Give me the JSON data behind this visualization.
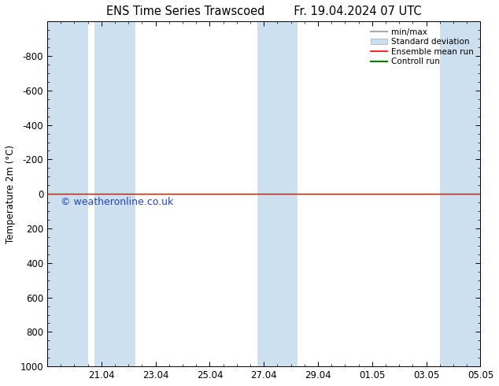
{
  "title_left": "ENS Time Series Trawscoed",
  "title_right": "Fr. 19.04.2024 07 UTC",
  "ylabel": "Temperature 2m (°C)",
  "ylim_top": -1000,
  "ylim_bottom": 1000,
  "yticks": [
    -800,
    -600,
    -400,
    -200,
    0,
    200,
    400,
    600,
    800,
    1000
  ],
  "xlim": [
    0,
    16
  ],
  "xtick_positions": [
    2,
    4,
    6,
    8,
    10,
    12,
    14,
    16
  ],
  "xtick_labels": [
    "21.04",
    "23.04",
    "25.04",
    "27.04",
    "29.04",
    "01.05",
    "03.05",
    "05.05"
  ],
  "shaded_bands": [
    [
      0.0,
      1.5
    ],
    [
      1.75,
      3.25
    ],
    [
      7.75,
      9.25
    ],
    [
      14.5,
      16.0
    ]
  ],
  "shaded_color": "#cce0f0",
  "green_line_y": 0,
  "red_line_y": 0,
  "green_color": "#008000",
  "red_color": "#ff0000",
  "minmax_color": "#aaaaaa",
  "stddev_color": "#c8dff0",
  "legend_labels": [
    "min/max",
    "Standard deviation",
    "Ensemble mean run",
    "Controll run"
  ],
  "watermark": "© weatheronline.co.uk",
  "watermark_color": "#2244cc",
  "bg_color": "#ffffff",
  "title_fontsize": 10.5,
  "axis_fontsize": 8.5,
  "legend_fontsize": 7.5
}
